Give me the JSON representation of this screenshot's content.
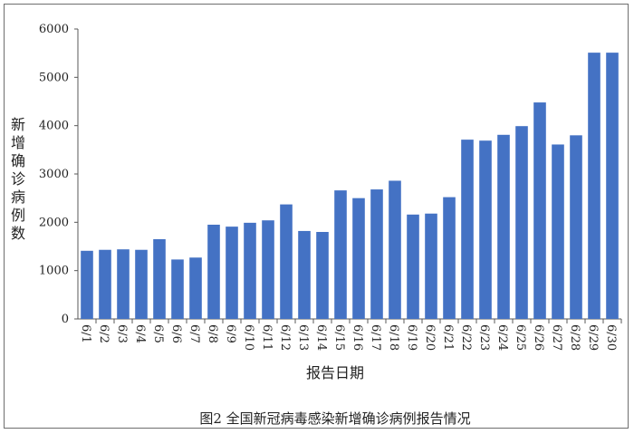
{
  "caption": "图2 全国新冠病毒感染新增确诊病例报告情况",
  "colors": {
    "bar": "#4472c4",
    "axis": "#595959",
    "text": "#222222"
  },
  "chart_data": {
    "type": "bar",
    "title": "",
    "xlabel": "报告日期",
    "ylabel": "新增确诊病例数",
    "ylim": [
      0,
      6000
    ],
    "yticks": [
      0,
      1000,
      2000,
      3000,
      4000,
      5000,
      6000
    ],
    "grid": false,
    "legend": "none",
    "categories": [
      "6/1",
      "6/2",
      "6/3",
      "6/4",
      "6/5",
      "6/6",
      "6/7",
      "6/8",
      "6/9",
      "6/10",
      "6/11",
      "6/12",
      "6/13",
      "6/14",
      "6/15",
      "6/16",
      "6/17",
      "6/18",
      "6/19",
      "6/20",
      "6/21",
      "6/22",
      "6/23",
      "6/24",
      "6/25",
      "6/26",
      "6/27",
      "6/28",
      "6/29",
      "6/30"
    ],
    "values": [
      1410,
      1430,
      1440,
      1430,
      1650,
      1230,
      1270,
      1950,
      1910,
      1990,
      2040,
      2370,
      1820,
      1800,
      2660,
      2500,
      2680,
      2860,
      2160,
      2180,
      2520,
      3710,
      3690,
      3810,
      3990,
      4480,
      3610,
      3800,
      5510,
      5510
    ]
  }
}
